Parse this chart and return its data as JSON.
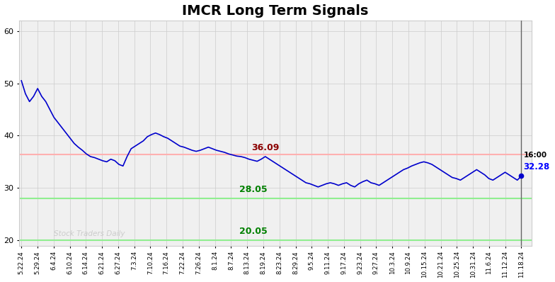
{
  "title": "IMCR Long Term Signals",
  "title_fontsize": 14,
  "title_fontweight": "bold",
  "background_color": "#ffffff",
  "plot_bg_color": "#f0f0f0",
  "line_color": "#0000cc",
  "line_width": 1.2,
  "ylim": [
    19,
    62
  ],
  "yticks": [
    20,
    30,
    40,
    50,
    60
  ],
  "red_hline": 36.4,
  "green_hline1": 28.05,
  "green_hline2": 20.05,
  "red_hline_color": "#ffb0b0",
  "green_hline1_color": "#90ee90",
  "green_hline2_color": "#90ee90",
  "annotation_36_09_color": "darkred",
  "annotation_28_05_color": "green",
  "annotation_20_05_color": "green",
  "watermark_color": "#c8c8c8",
  "end_dot_color": "#0000cc",
  "vline_color": "#666666",
  "grid_color": "#cccccc",
  "xticklabels": [
    "5.22.24",
    "5.29.24",
    "6.4.24",
    "6.10.24",
    "6.14.24",
    "6.21.24",
    "6.27.24",
    "7.3.24",
    "7.10.24",
    "7.16.24",
    "7.22.24",
    "7.26.24",
    "8.1.24",
    "8.7.24",
    "8.13.24",
    "8.19.24",
    "8.23.24",
    "8.29.24",
    "9.5.24",
    "9.11.24",
    "9.17.24",
    "9.23.24",
    "9.27.24",
    "10.3.24",
    "10.9.24",
    "10.15.24",
    "10.21.24",
    "10.25.24",
    "10.31.24",
    "11.6.24",
    "11.12.24",
    "11.18.24"
  ],
  "prices": [
    50.5,
    48.0,
    46.5,
    47.5,
    49.0,
    47.5,
    46.5,
    45.0,
    43.5,
    42.5,
    41.5,
    40.5,
    39.5,
    38.5,
    37.8,
    37.2,
    36.5,
    36.0,
    35.8,
    35.5,
    35.2,
    35.0,
    35.5,
    35.2,
    34.5,
    34.2,
    36.0,
    37.5,
    38.0,
    38.5,
    39.0,
    39.8,
    40.2,
    40.5,
    40.2,
    39.8,
    39.5,
    39.0,
    38.5,
    38.0,
    37.8,
    37.5,
    37.2,
    37.0,
    37.2,
    37.5,
    37.8,
    37.5,
    37.2,
    37.0,
    36.8,
    36.5,
    36.3,
    36.09,
    36.0,
    35.8,
    35.5,
    35.3,
    35.1,
    35.5,
    36.0,
    35.5,
    35.0,
    34.5,
    34.0,
    33.5,
    33.0,
    32.5,
    32.0,
    31.5,
    31.0,
    30.8,
    30.5,
    30.2,
    30.5,
    30.8,
    31.0,
    30.8,
    30.5,
    30.8,
    31.0,
    30.5,
    30.2,
    30.8,
    31.2,
    31.5,
    31.0,
    30.8,
    30.5,
    31.0,
    31.5,
    32.0,
    32.5,
    33.0,
    33.5,
    33.8,
    34.2,
    34.5,
    34.8,
    35.0,
    34.8,
    34.5,
    34.0,
    33.5,
    33.0,
    32.5,
    32.0,
    31.8,
    31.5,
    32.0,
    32.5,
    33.0,
    33.5,
    33.0,
    32.5,
    31.8,
    31.5,
    32.0,
    32.5,
    33.0,
    32.5,
    32.0,
    31.5,
    32.28
  ]
}
